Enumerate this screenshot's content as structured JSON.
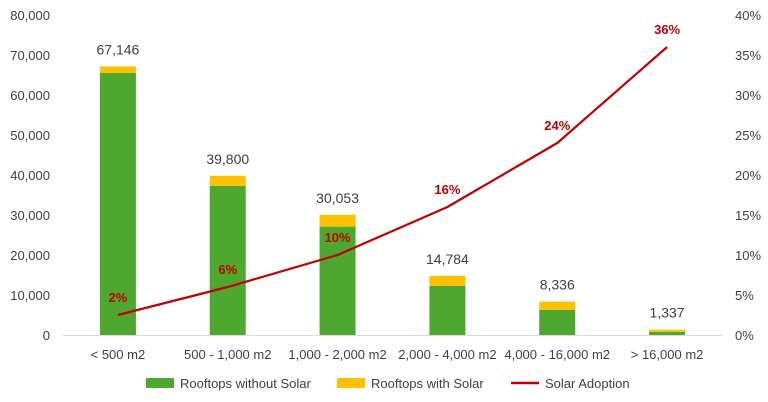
{
  "chart_data": {
    "type": "bar",
    "stacked": true,
    "categories": [
      "< 500 m2",
      "500 - 1,000 m2",
      "1,000 - 2,000 m2",
      "2,000 - 4,000 m2",
      "4,000 - 16,000 m2",
      "> 16,000 m2"
    ],
    "series": [
      {
        "name": "Rooftops without Solar",
        "type": "bar",
        "axis": "left",
        "color": "#4EA72E",
        "values": [
          65500,
          37300,
          27100,
          12300,
          6300,
          800
        ]
      },
      {
        "name": "Rooftops with Solar",
        "type": "bar",
        "axis": "left",
        "color": "#FFC000",
        "values": [
          1646,
          2500,
          2953,
          2484,
          2036,
          537
        ]
      },
      {
        "name": "Solar Adoption",
        "type": "line",
        "axis": "right",
        "color": "#C00000",
        "values": [
          2.5,
          6,
          10,
          16,
          24,
          36
        ]
      }
    ],
    "totals": [
      67146,
      39800,
      30053,
      14784,
      8336,
      1337
    ],
    "total_labels": [
      "67,146",
      "39,800",
      "30,053",
      "14,784",
      "8,336",
      "1,337"
    ],
    "line_labels": [
      "2%",
      "6%",
      "10%",
      "16%",
      "24%",
      "36%"
    ],
    "y_left": {
      "range": [
        0,
        80000
      ],
      "ticks": [
        "0",
        "10,000",
        "20,000",
        "30,000",
        "40,000",
        "50,000",
        "60,000",
        "70,000",
        "80,000"
      ]
    },
    "y_right": {
      "range": [
        0,
        40
      ],
      "ticks": [
        "0%",
        "5%",
        "10%",
        "15%",
        "20%",
        "25%",
        "30%",
        "35%",
        "40%"
      ]
    },
    "grid": false,
    "legend_position": "bottom"
  }
}
